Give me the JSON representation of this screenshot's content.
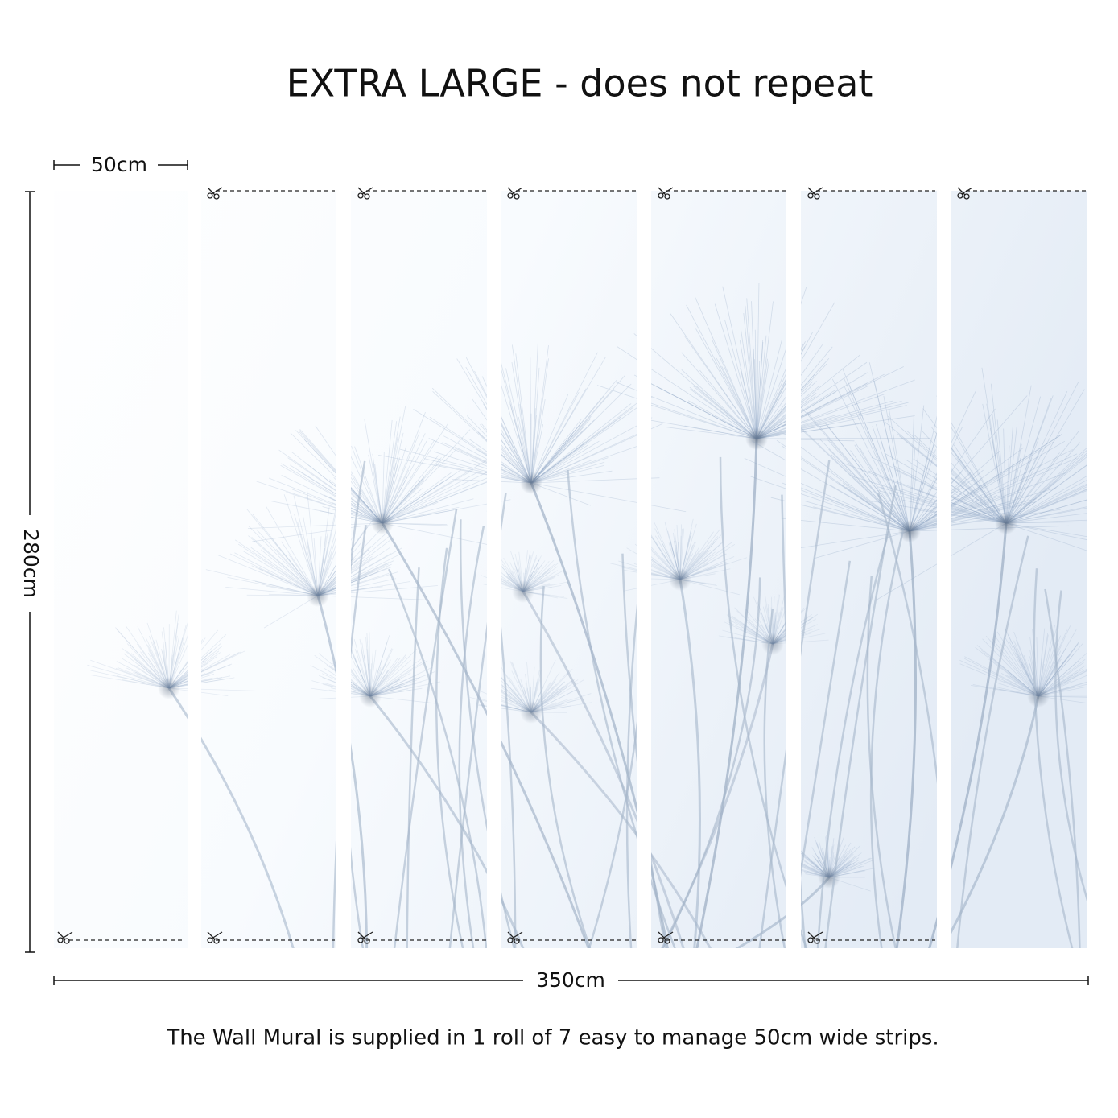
{
  "header": {
    "title": "EXTRA LARGE - does not repeat"
  },
  "dimensions": {
    "strip_width": "50cm",
    "height": "280cm",
    "total_width": "350cm"
  },
  "caption": "The Wall Mural is supplied in 1 roll of 7 easy to manage 50cm wide strips."
}
